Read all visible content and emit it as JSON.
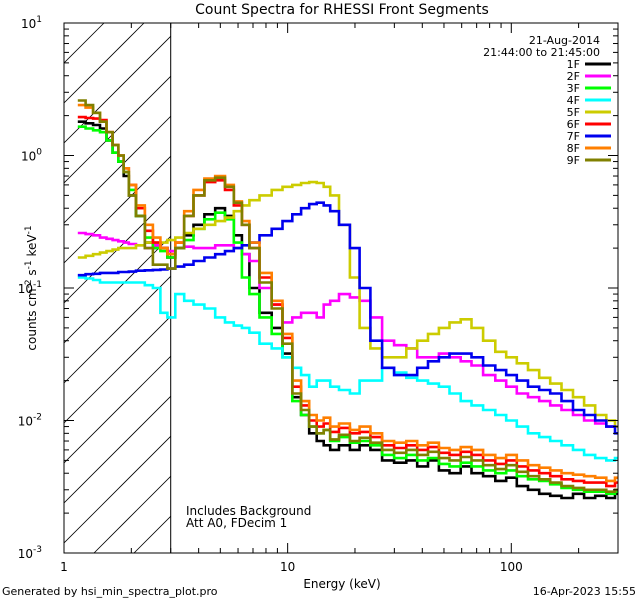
{
  "chart_data": {
    "type": "line",
    "title": "Count Spectra for RHESSI Front Segments",
    "xlabel": "Energy (keV)",
    "ylabel_base": "counts cm",
    "ylabel_exp1": "-2",
    "ylabel_mid": " s",
    "ylabel_exp2": "-1",
    "ylabel_end": " keV",
    "ylabel_exp3": "-1",
    "xscale": "log",
    "yscale": "log",
    "xlim": [
      1,
      300
    ],
    "ylim": [
      0.001,
      10
    ],
    "x_ticks": [
      {
        "v": 1,
        "label": "1"
      },
      {
        "v": 10,
        "label": "10"
      },
      {
        "v": 100,
        "label": "100"
      }
    ],
    "y_ticks": [
      {
        "v": 0.001,
        "base": "10",
        "exp": "-3"
      },
      {
        "v": 0.01,
        "base": "10",
        "exp": "-2"
      },
      {
        "v": 0.1,
        "base": "10",
        "exp": "-1"
      },
      {
        "v": 1,
        "base": "10",
        "exp": "0"
      },
      {
        "v": 10,
        "base": "10",
        "exp": "1"
      }
    ],
    "excluded_below_keV": 3,
    "annotation_date": "21-Aug-2014",
    "annotation_time": "21:44:00 to 21:45:00",
    "bottom_notes": [
      "Includes Background",
      "Att A0, FDecim 1"
    ],
    "legend_position": "top-right",
    "x_energy": [
      1.2,
      1.3,
      1.4,
      1.5,
      1.6,
      1.7,
      1.8,
      1.9,
      2.0,
      2.2,
      2.4,
      2.6,
      2.8,
      3.0,
      3.3,
      3.6,
      4.0,
      4.5,
      5.0,
      5.5,
      6.0,
      6.5,
      7.0,
      8.0,
      9.0,
      10,
      11,
      12,
      13,
      14,
      15,
      16,
      18,
      20,
      22,
      25,
      28,
      32,
      36,
      40,
      45,
      50,
      56,
      63,
      70,
      80,
      90,
      100,
      112,
      126,
      141,
      158,
      178,
      200,
      224,
      251,
      282,
      300
    ],
    "series": [
      {
        "name": "1F",
        "color": "#000000",
        "values": [
          1.8,
          1.75,
          1.7,
          1.6,
          1.3,
          1.05,
          0.9,
          0.7,
          0.5,
          0.35,
          0.22,
          0.2,
          0.2,
          0.17,
          0.2,
          0.25,
          0.3,
          0.36,
          0.4,
          0.35,
          0.25,
          0.18,
          0.1,
          0.065,
          0.05,
          0.032,
          0.015,
          0.011,
          0.008,
          0.007,
          0.0065,
          0.006,
          0.0065,
          0.006,
          0.0065,
          0.006,
          0.005,
          0.0048,
          0.005,
          0.0045,
          0.005,
          0.0042,
          0.004,
          0.0045,
          0.004,
          0.0038,
          0.0035,
          0.0037,
          0.0032,
          0.003,
          0.0028,
          0.0027,
          0.0026,
          0.0028,
          0.0026,
          0.0027,
          0.0026,
          0.0028
        ]
      },
      {
        "name": "2F",
        "color": "#ff00ff",
        "values": [
          0.26,
          0.255,
          0.25,
          0.24,
          0.235,
          0.23,
          0.225,
          0.22,
          0.215,
          0.21,
          0.2,
          0.21,
          0.2,
          0.19,
          0.2,
          0.205,
          0.2,
          0.2,
          0.21,
          0.21,
          0.2,
          0.18,
          0.16,
          0.1,
          0.075,
          0.055,
          0.06,
          0.065,
          0.065,
          0.06,
          0.075,
          0.08,
          0.09,
          0.085,
          0.08,
          0.06,
          0.04,
          0.037,
          0.035,
          0.03,
          0.03,
          0.032,
          0.03,
          0.028,
          0.026,
          0.022,
          0.02,
          0.018,
          0.016,
          0.015,
          0.014,
          0.013,
          0.012,
          0.011,
          0.01,
          0.0095,
          0.009,
          0.009
        ]
      },
      {
        "name": "3F",
        "color": "#00ff00",
        "values": [
          1.65,
          1.6,
          1.55,
          1.5,
          1.3,
          1.05,
          0.9,
          0.75,
          0.55,
          0.35,
          0.24,
          0.2,
          0.19,
          0.17,
          0.2,
          0.23,
          0.28,
          0.33,
          0.37,
          0.33,
          0.22,
          0.12,
          0.09,
          0.06,
          0.045,
          0.03,
          0.014,
          0.011,
          0.009,
          0.008,
          0.0085,
          0.007,
          0.0075,
          0.0068,
          0.007,
          0.0065,
          0.0055,
          0.0052,
          0.0055,
          0.005,
          0.0052,
          0.0047,
          0.0045,
          0.0048,
          0.0045,
          0.0042,
          0.004,
          0.0042,
          0.0038,
          0.0036,
          0.0035,
          0.0033,
          0.0031,
          0.003,
          0.0029,
          0.0029,
          0.0028,
          0.0029
        ]
      },
      {
        "name": "4F",
        "color": "#00ffff",
        "values": [
          0.12,
          0.118,
          0.115,
          0.11,
          0.11,
          0.11,
          0.11,
          0.11,
          0.11,
          0.11,
          0.105,
          0.1,
          0.065,
          0.06,
          0.09,
          0.08,
          0.075,
          0.07,
          0.06,
          0.055,
          0.052,
          0.05,
          0.046,
          0.038,
          0.035,
          0.03,
          0.025,
          0.022,
          0.018,
          0.02,
          0.02,
          0.018,
          0.017,
          0.016,
          0.02,
          0.02,
          0.025,
          0.023,
          0.021,
          0.02,
          0.019,
          0.018,
          0.016,
          0.014,
          0.013,
          0.012,
          0.011,
          0.01,
          0.009,
          0.008,
          0.0075,
          0.007,
          0.0065,
          0.006,
          0.0055,
          0.0052,
          0.005,
          0.0052
        ]
      },
      {
        "name": "5F",
        "color": "#cccc00",
        "values": [
          0.17,
          0.175,
          0.18,
          0.185,
          0.19,
          0.195,
          0.2,
          0.2,
          0.2,
          0.21,
          0.22,
          0.22,
          0.22,
          0.23,
          0.24,
          0.26,
          0.28,
          0.3,
          0.32,
          0.34,
          0.38,
          0.42,
          0.46,
          0.5,
          0.55,
          0.58,
          0.6,
          0.62,
          0.63,
          0.62,
          0.58,
          0.5,
          0.3,
          0.12,
          0.05,
          0.035,
          0.03,
          0.03,
          0.035,
          0.04,
          0.045,
          0.05,
          0.055,
          0.058,
          0.05,
          0.04,
          0.033,
          0.03,
          0.027,
          0.024,
          0.021,
          0.019,
          0.017,
          0.015,
          0.013,
          0.011,
          0.01,
          0.009
        ]
      },
      {
        "name": "6F",
        "color": "#ff0000",
        "values": [
          1.95,
          1.92,
          1.9,
          1.85,
          1.5,
          1.2,
          1.0,
          0.8,
          0.6,
          0.4,
          0.27,
          0.22,
          0.2,
          0.18,
          0.22,
          0.35,
          0.5,
          0.63,
          0.65,
          0.55,
          0.42,
          0.3,
          0.2,
          0.12,
          0.075,
          0.042,
          0.018,
          0.013,
          0.01,
          0.009,
          0.0095,
          0.0082,
          0.0088,
          0.008,
          0.0082,
          0.0075,
          0.0065,
          0.0062,
          0.0065,
          0.006,
          0.0063,
          0.0057,
          0.0055,
          0.0058,
          0.0055,
          0.005,
          0.0047,
          0.005,
          0.0045,
          0.0042,
          0.004,
          0.0038,
          0.0036,
          0.0035,
          0.0034,
          0.0034,
          0.0032,
          0.0034
        ]
      },
      {
        "name": "7F",
        "color": "#0000ee",
        "values": [
          0.125,
          0.127,
          0.128,
          0.13,
          0.13,
          0.13,
          0.132,
          0.132,
          0.133,
          0.135,
          0.136,
          0.137,
          0.138,
          0.14,
          0.145,
          0.15,
          0.16,
          0.17,
          0.18,
          0.19,
          0.2,
          0.21,
          0.22,
          0.25,
          0.28,
          0.32,
          0.36,
          0.4,
          0.43,
          0.44,
          0.42,
          0.38,
          0.3,
          0.2,
          0.1,
          0.04,
          0.025,
          0.022,
          0.022,
          0.025,
          0.028,
          0.03,
          0.032,
          0.032,
          0.03,
          0.026,
          0.024,
          0.022,
          0.02,
          0.018,
          0.017,
          0.016,
          0.014,
          0.012,
          0.011,
          0.01,
          0.009,
          0.008
        ]
      },
      {
        "name": "8F",
        "color": "#ff7f00",
        "values": [
          2.4,
          2.3,
          2.1,
          1.8,
          1.5,
          1.2,
          1.0,
          0.8,
          0.6,
          0.42,
          0.3,
          0.24,
          0.2,
          0.18,
          0.22,
          0.38,
          0.55,
          0.67,
          0.7,
          0.6,
          0.45,
          0.32,
          0.22,
          0.13,
          0.08,
          0.045,
          0.02,
          0.014,
          0.011,
          0.01,
          0.0105,
          0.009,
          0.0095,
          0.0085,
          0.009,
          0.008,
          0.007,
          0.0068,
          0.007,
          0.0065,
          0.0068,
          0.0062,
          0.006,
          0.0063,
          0.006,
          0.0055,
          0.0052,
          0.0055,
          0.005,
          0.0046,
          0.0044,
          0.0042,
          0.004,
          0.0039,
          0.0038,
          0.0037,
          0.0035,
          0.0037
        ]
      },
      {
        "name": "9F",
        "color": "#808000",
        "values": [
          2.6,
          2.4,
          2.1,
          1.8,
          1.5,
          1.2,
          1.0,
          0.75,
          0.5,
          0.35,
          0.2,
          0.15,
          0.15,
          0.14,
          0.2,
          0.35,
          0.5,
          0.65,
          0.68,
          0.58,
          0.44,
          0.3,
          0.2,
          0.11,
          0.07,
          0.038,
          0.016,
          0.012,
          0.009,
          0.008,
          0.0085,
          0.0072,
          0.0078,
          0.007,
          0.0074,
          0.0068,
          0.006,
          0.0057,
          0.006,
          0.0055,
          0.0058,
          0.0052,
          0.005,
          0.0053,
          0.005,
          0.0046,
          0.0043,
          0.0046,
          0.0041,
          0.0038,
          0.0036,
          0.0034,
          0.0032,
          0.0031,
          0.003,
          0.003,
          0.0029,
          0.003
        ]
      }
    ]
  },
  "footer": {
    "generated_by": "Generated by hsi_min_spectra_plot.pro",
    "timestamp": "16-Apr-2023 15:55"
  }
}
